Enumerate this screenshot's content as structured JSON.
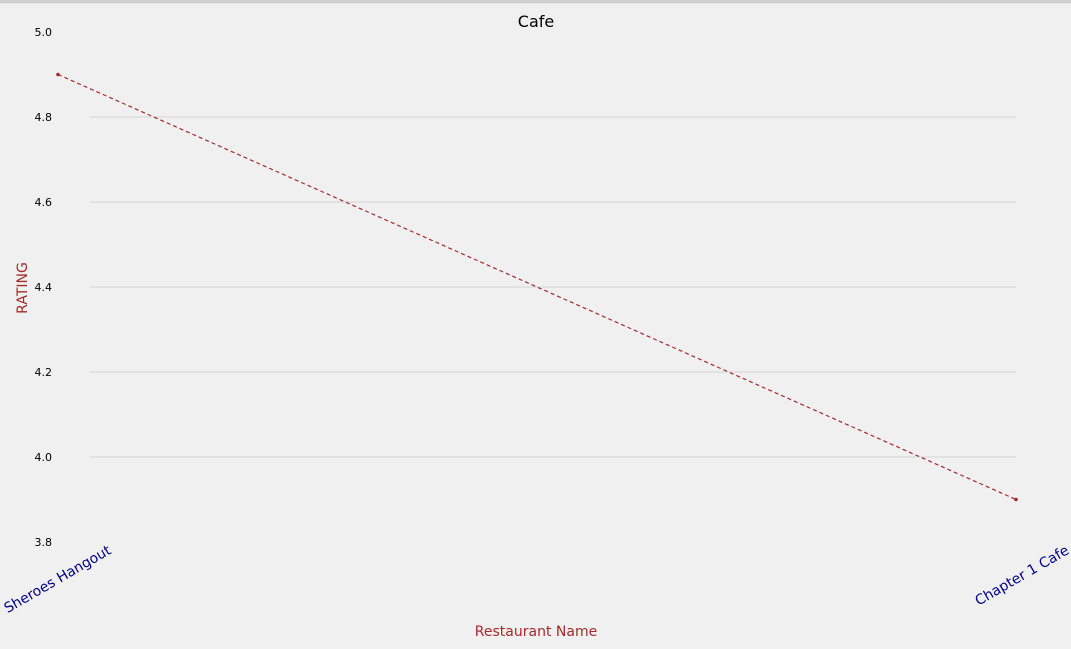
{
  "chart_data": {
    "type": "line",
    "title": "Cafe",
    "xlabel": "Restaurant Name",
    "ylabel": "RATING",
    "categories": [
      "Sheroes Hangout",
      "Chapter 1 Cafe"
    ],
    "series": [
      {
        "values": [
          4.9,
          3.9
        ]
      }
    ],
    "ylim": [
      3.8,
      5.0
    ],
    "yticks": [
      "3.8",
      "4.0",
      "4.2",
      "4.4",
      "4.6",
      "4.8",
      "5.0"
    ],
    "grid": "horizontal",
    "line_style": "dashed"
  },
  "colors": {
    "background": "#f0f0f0",
    "line": "#a52a2a",
    "axis_label": "#a52a2a",
    "category_label": "#00008b",
    "grid": "#d3d3d3"
  }
}
